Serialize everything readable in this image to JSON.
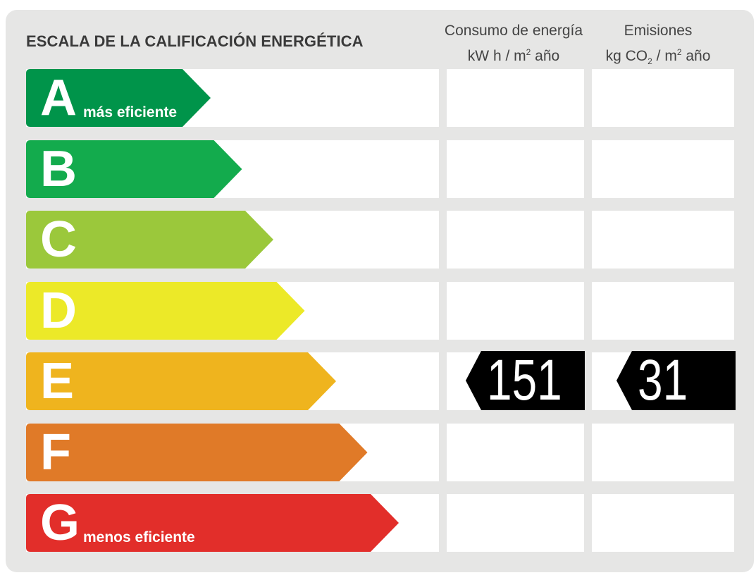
{
  "title": "ESCALA DE LA CALIFICACIÓN ENERGÉTICA",
  "columns": {
    "consumption": {
      "line1": "Consumo de energía",
      "line2_a": "kW h  / m",
      "line2_sup": "2",
      "line2_b": " año"
    },
    "emissions": {
      "line1": "Emisiones",
      "line2_a": "kg CO",
      "line2_sub": "2",
      "line2_b": "  / m",
      "line2_sup": "2",
      "line2_c": " año"
    }
  },
  "ratings": [
    {
      "letter": "A",
      "sublabel": "más eficiente",
      "color": "#00944a"
    },
    {
      "letter": "B",
      "sublabel": "",
      "color": "#13ab4d"
    },
    {
      "letter": "C",
      "sublabel": "",
      "color": "#9bc83b"
    },
    {
      "letter": "D",
      "sublabel": "",
      "color": "#ece928"
    },
    {
      "letter": "E",
      "sublabel": "",
      "color": "#efb41e"
    },
    {
      "letter": "F",
      "sublabel": "",
      "color": "#e07a28"
    },
    {
      "letter": "G",
      "sublabel": "menos eficiente",
      "color": "#e22e2a"
    }
  ],
  "current_rating": "E",
  "values": {
    "consumption": "151",
    "emissions": "31"
  }
}
